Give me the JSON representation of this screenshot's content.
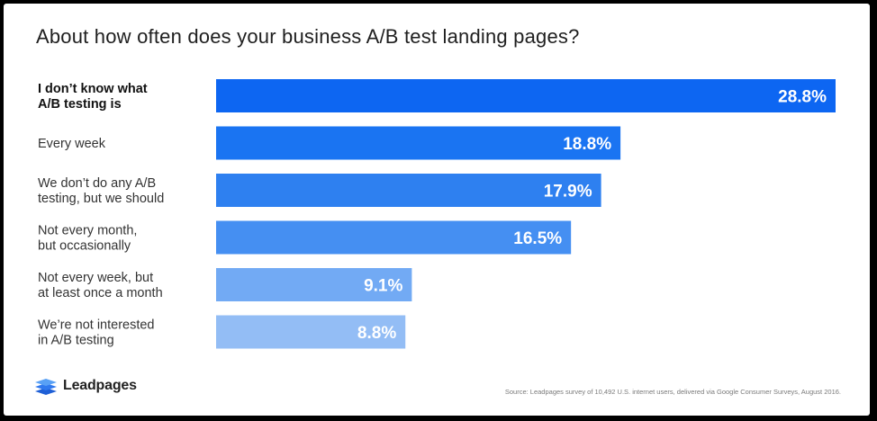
{
  "chart_data": {
    "type": "bar",
    "orientation": "horizontal",
    "title": "About how often does your business A/B test landing pages?",
    "categories": [
      [
        "I don’t know what",
        "A/B testing is"
      ],
      [
        "Every week"
      ],
      [
        "We don’t do any A/B",
        "testing, but we should"
      ],
      [
        "Not every month,",
        "but occasionally"
      ],
      [
        "Not every week, but",
        "at least once a month"
      ],
      [
        "We’re not interested",
        "in A/B testing"
      ]
    ],
    "values": [
      28.8,
      18.8,
      17.9,
      16.5,
      9.1,
      8.8
    ],
    "value_labels": [
      "28.8%",
      "18.8%",
      "17.9%",
      "16.5%",
      "9.1%",
      "8.8%"
    ],
    "bar_colors": [
      "#0d66f2",
      "#1a74f2",
      "#2e80f0",
      "#458ff2",
      "#72aaf4",
      "#93bdf5"
    ],
    "xlim": [
      0,
      28.8
    ],
    "grid": false,
    "legend": "none"
  },
  "branding": {
    "logo_text": "Leadpages",
    "source": "Source: Leadpages survey of 10,492 U.S. internet users, delivered via Google Consumer Surveys, August 2016."
  }
}
